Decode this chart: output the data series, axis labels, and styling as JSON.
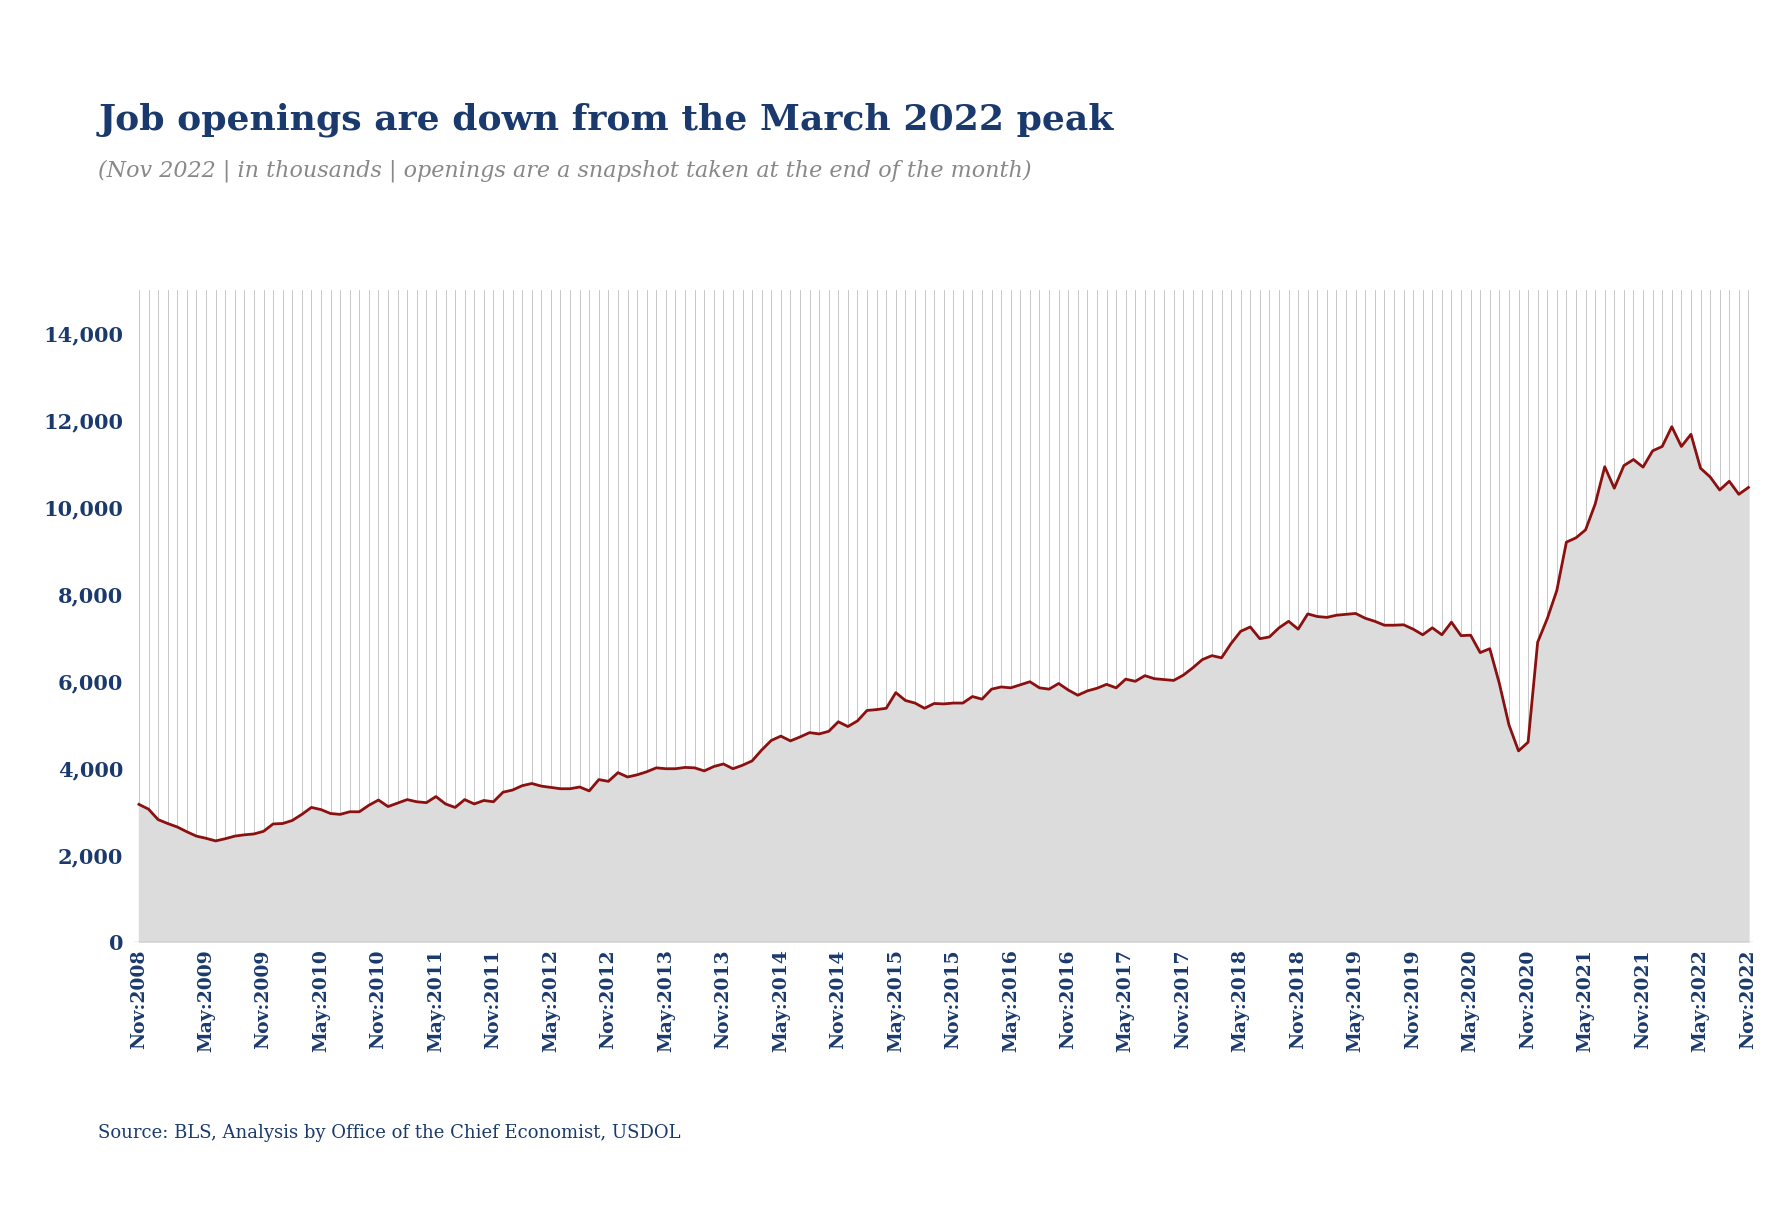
{
  "title": "Job openings are down from the March 2022 peak",
  "subtitle": "(Nov 2022 | in thousands | openings are a snapshot taken at the end of the month)",
  "source": "Source: BLS, Analysis by Office of the Chief Economist, USDOL",
  "title_color": "#1a3a6e",
  "subtitle_color": "#888888",
  "source_color": "#1a3a6e",
  "line_color": "#8b1010",
  "fill_color": "#dcdcdc",
  "background_color": "#ffffff",
  "plot_bg_color": "#ffffff",
  "grid_color": "#c8c8c8",
  "ylim": [
    0,
    15000
  ],
  "yticks": [
    0,
    2000,
    4000,
    6000,
    8000,
    10000,
    12000,
    14000
  ],
  "values": [
    3170,
    3060,
    2820,
    2730,
    2650,
    2540,
    2440,
    2390,
    2330,
    2380,
    2440,
    2470,
    2490,
    2550,
    2720,
    2730,
    2800,
    2940,
    3100,
    3050,
    2960,
    2940,
    3000,
    3000,
    3150,
    3270,
    3120,
    3200,
    3280,
    3230,
    3210,
    3350,
    3180,
    3100,
    3280,
    3180,
    3260,
    3230,
    3450,
    3500,
    3600,
    3650,
    3590,
    3560,
    3530,
    3530,
    3570,
    3480,
    3740,
    3700,
    3900,
    3800,
    3850,
    3920,
    4010,
    3990,
    3990,
    4020,
    4010,
    3940,
    4040,
    4100,
    3990,
    4070,
    4170,
    4420,
    4640,
    4740,
    4630,
    4720,
    4820,
    4790,
    4850,
    5070,
    4960,
    5090,
    5330,
    5350,
    5380,
    5740,
    5560,
    5500,
    5380,
    5490,
    5480,
    5500,
    5500,
    5650,
    5590,
    5820,
    5870,
    5850,
    5920,
    5990,
    5850,
    5820,
    5950,
    5800,
    5680,
    5780,
    5840,
    5930,
    5850,
    6050,
    6000,
    6130,
    6060,
    6040,
    6020,
    6140,
    6310,
    6500,
    6590,
    6540,
    6870,
    7150,
    7250,
    6980,
    7020,
    7230,
    7380,
    7200,
    7550,
    7490,
    7470,
    7520,
    7540,
    7560,
    7450,
    7380,
    7290,
    7290,
    7300,
    7200,
    7070,
    7230,
    7070,
    7360,
    7050,
    7060,
    6660,
    6750,
    5950,
    5000,
    4400,
    4600,
    6900,
    7440,
    8090,
    9200,
    9300,
    9483,
    10074,
    10934,
    10440,
    10960,
    11100,
    10925,
    11300,
    11400,
    11855,
    11400,
    11680,
    10900,
    10700,
    10400,
    10600,
    10300,
    10458
  ],
  "tick_labels": [
    "Nov:2008",
    "May:2009",
    "Nov:2009",
    "May:2010",
    "Nov:2010",
    "May:2011",
    "Nov:2011",
    "May:2012",
    "Nov:2012",
    "May:2013",
    "Nov:2013",
    "May:2014",
    "Nov:2014",
    "May:2015",
    "Nov:2015",
    "May:2016",
    "Nov:2016",
    "May:2017",
    "Nov:2017",
    "May:2018",
    "Nov:2018",
    "May:2019",
    "Nov:2019",
    "May:2020",
    "Nov:2020",
    "May:2021",
    "Nov:2021",
    "May:2022",
    "Nov:2022"
  ],
  "tick_indices": [
    0,
    7,
    13,
    19,
    25,
    31,
    37,
    43,
    49,
    55,
    61,
    67,
    73,
    79,
    85,
    91,
    97,
    103,
    109,
    115,
    121,
    127,
    133,
    139,
    145,
    151,
    157,
    163,
    168
  ]
}
